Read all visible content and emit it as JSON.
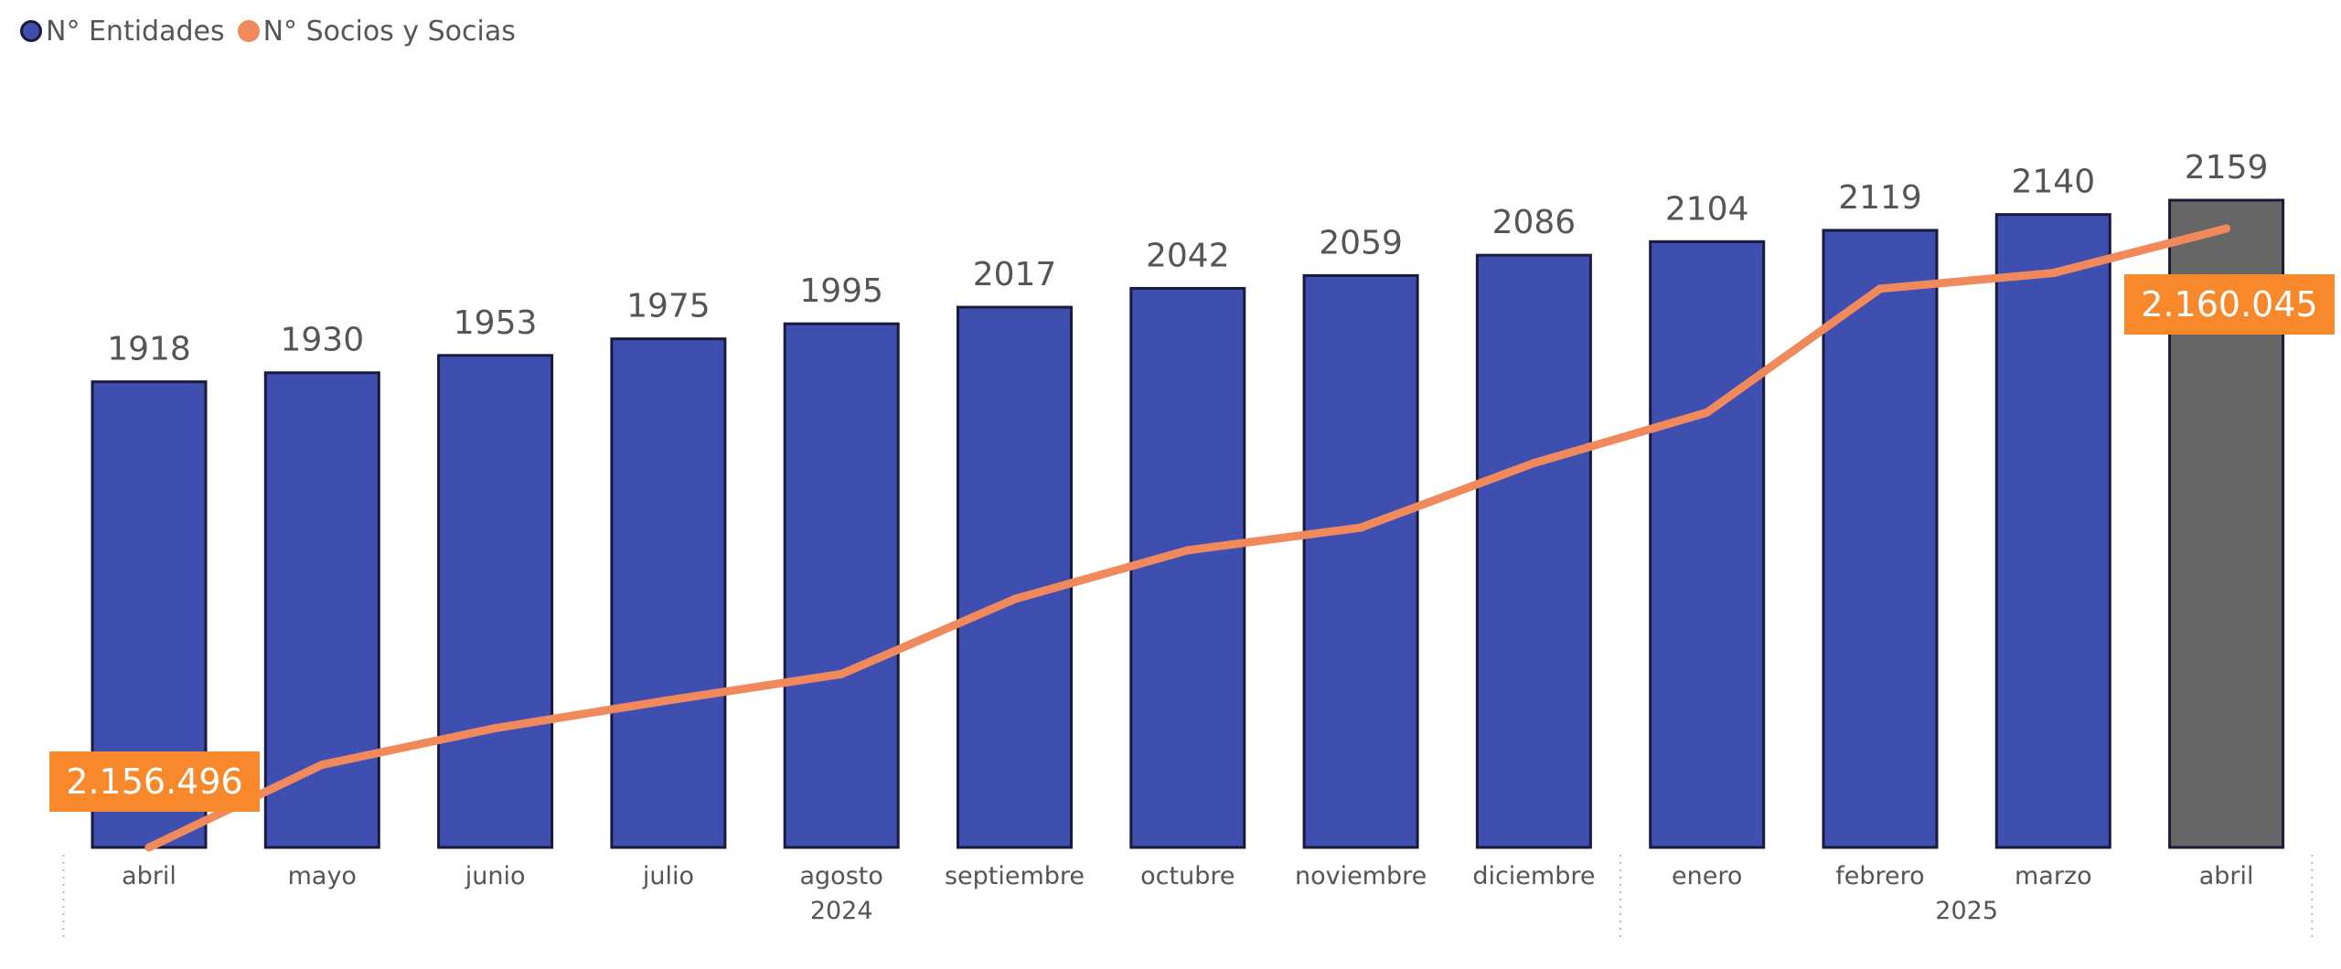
{
  "legend": {
    "entidades_label": "N° Entidades",
    "socios_label": "N° Socios y Socias"
  },
  "colors": {
    "bar": "#3f4fb0",
    "bar_highlight": "#666666",
    "bar_border": "#1a1a3a",
    "line": "#f0895b",
    "callout_bg": "#f7892c",
    "callout_text": "#ffffff",
    "tick_text": "#555555",
    "value_label": "#555555"
  },
  "chart_data": {
    "type": "bar",
    "categories": [
      "abril",
      "mayo",
      "junio",
      "julio",
      "agosto",
      "septiembre",
      "octubre",
      "noviembre",
      "diciembre",
      "enero",
      "febrero",
      "marzo",
      "abril"
    ],
    "year_groups": [
      {
        "label": "2024",
        "start": 0,
        "end": 8
      },
      {
        "label": "2025",
        "start": 9,
        "end": 12
      }
    ],
    "series": [
      {
        "name": "N° Entidades",
        "kind": "bar",
        "values": [
          1918,
          1930,
          1953,
          1975,
          1995,
          2017,
          2042,
          2059,
          2086,
          2104,
          2119,
          2140,
          2159
        ],
        "highlight_index": 12
      },
      {
        "name": "N° Socios y Socias",
        "kind": "line",
        "values": [
          2156496,
          2156970,
          2157180,
          2157340,
          2157490,
          2157920,
          2158200,
          2158330,
          2158700,
          2158990,
          2159700,
          2159790,
          2160045
        ]
      }
    ],
    "callouts": [
      {
        "index": 0,
        "text": "2.156.496"
      },
      {
        "index": 12,
        "text": "2.160.045"
      }
    ],
    "bar_axis_range": [
      1300,
      2200
    ],
    "line_axis_range": [
      2156496,
      2160045
    ],
    "grid": false,
    "legend_position": "top-left"
  }
}
